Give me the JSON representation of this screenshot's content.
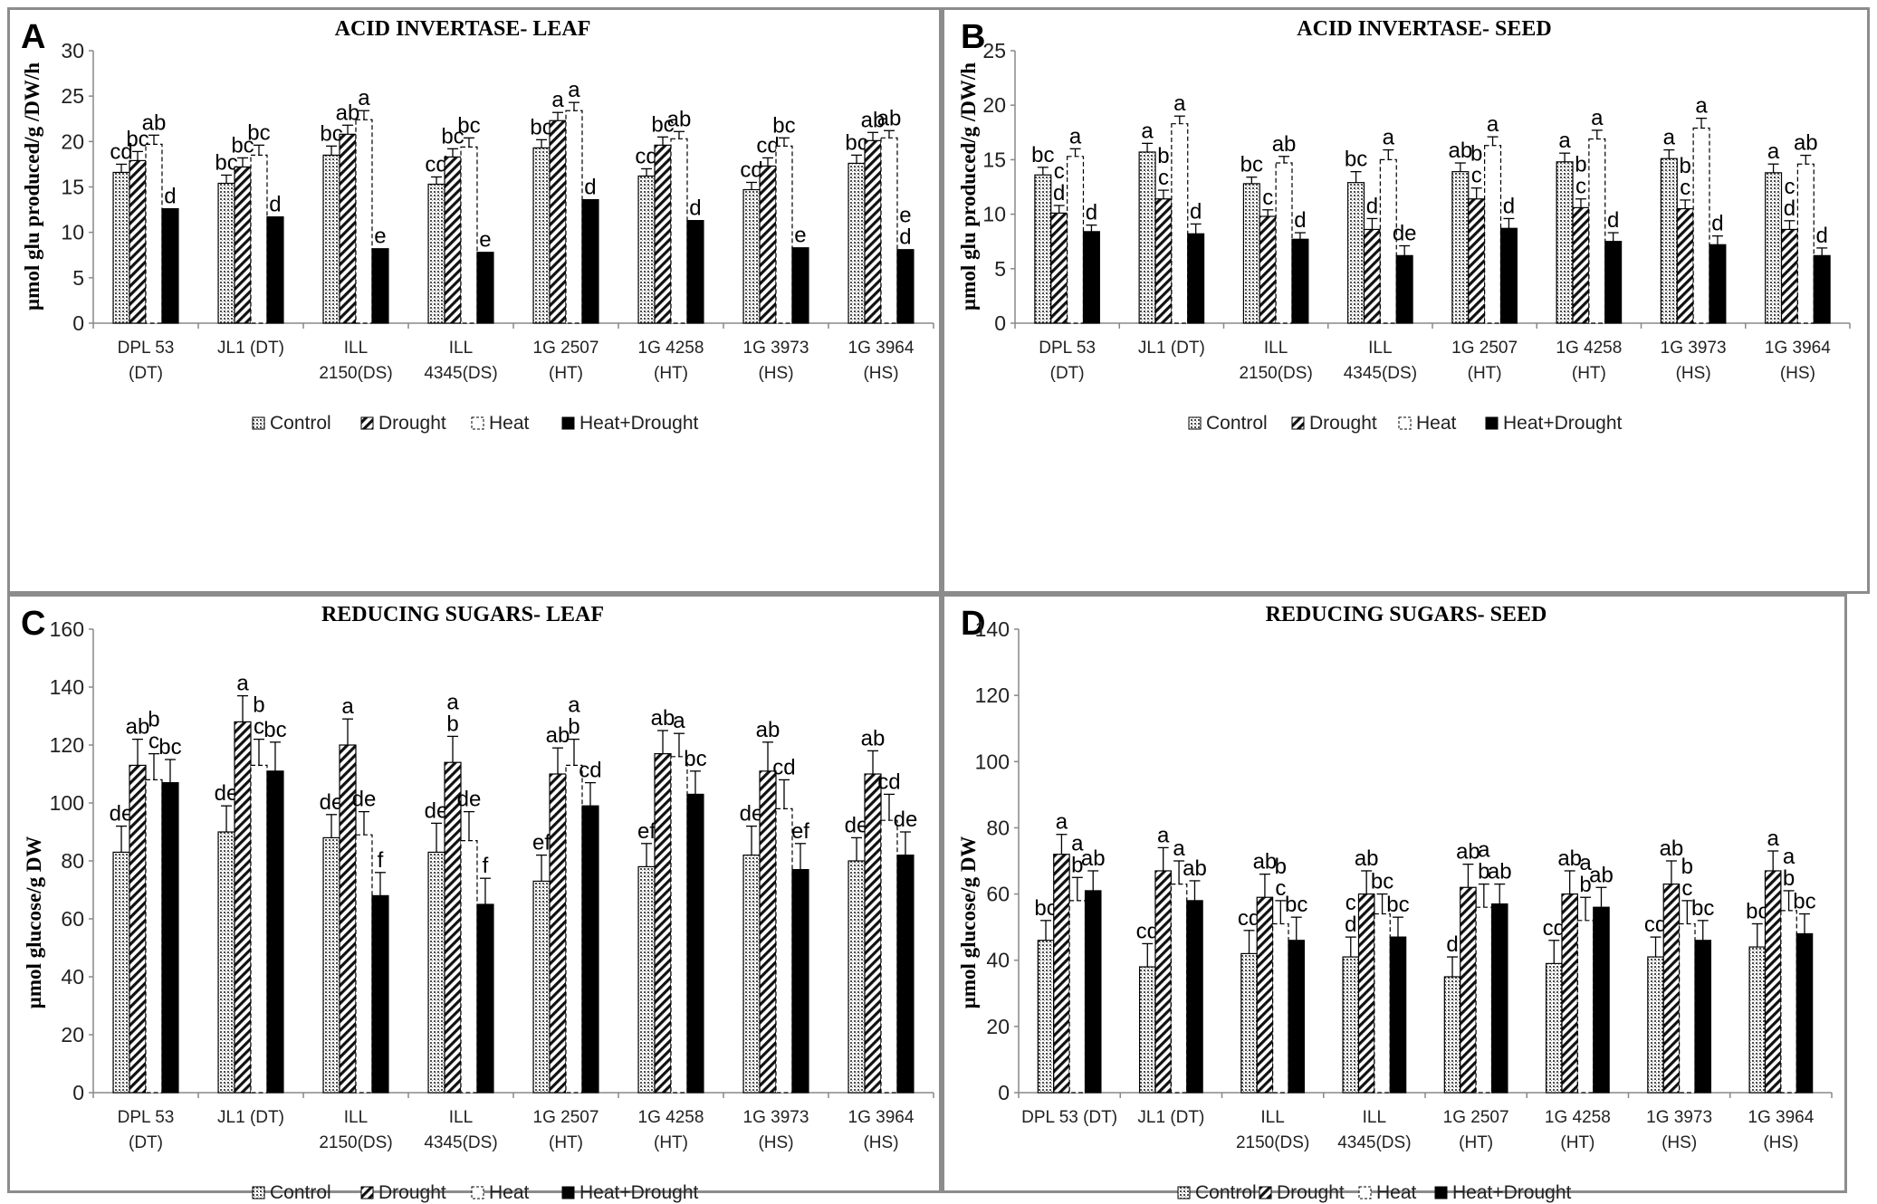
{
  "chart_data": [
    {
      "panel_label": "A",
      "type": "bar",
      "title": "ACID INVERTASE- LEAF",
      "ylabel": "µmol glu produced/g /DW/h",
      "xlabel": "",
      "ylim": [
        0,
        30
      ],
      "yticks": [
        0,
        5,
        10,
        15,
        20,
        25,
        30
      ],
      "categories": [
        [
          "DPL 53",
          "(DT)"
        ],
        [
          "JL1 (DT)"
        ],
        [
          "ILL",
          "2150(DS)"
        ],
        [
          "ILL",
          "4345(DS)"
        ],
        [
          "1G 2507",
          "(HT)"
        ],
        [
          "1G 4258",
          "(HT)"
        ],
        [
          "1G 3973",
          "(HS)"
        ],
        [
          "1G 3964",
          "(HS)"
        ]
      ],
      "legend": [
        "Control",
        "Drought",
        "Heat",
        "Heat+Drought"
      ],
      "series": [
        {
          "name": "Control",
          "values": [
            16.6,
            15.4,
            18.5,
            15.3,
            19.3,
            16.2,
            14.7,
            17.6
          ],
          "errors": [
            0.9,
            0.9,
            1.0,
            0.8,
            0.9,
            0.8,
            0.8,
            0.9
          ],
          "labels": [
            "cd",
            "bc",
            "bc",
            "cd",
            "bc",
            "cd",
            "cd",
            "bc"
          ]
        },
        {
          "name": "Drought",
          "values": [
            17.9,
            17.2,
            20.8,
            18.3,
            22.3,
            19.6,
            17.3,
            20.1
          ],
          "errors": [
            1.0,
            1.0,
            1.0,
            0.9,
            0.9,
            0.9,
            0.9,
            0.9
          ],
          "labels": [
            "bc",
            "bc",
            "ab",
            "bc",
            "a",
            "bc",
            "cd",
            "ab"
          ]
        },
        {
          "name": "Heat",
          "values": [
            19.7,
            18.5,
            22.4,
            19.4,
            23.4,
            20.3,
            19.5,
            20.4
          ],
          "errors": [
            1.0,
            1.1,
            1.0,
            1.0,
            0.9,
            0.8,
            0.9,
            0.8
          ],
          "labels": [
            "ab",
            "bc",
            "a",
            "bc",
            "a",
            "ab",
            "bc",
            "ab"
          ]
        },
        {
          "name": "Heat+Drought",
          "values": [
            12.6,
            11.7,
            8.2,
            7.8,
            13.6,
            11.3,
            8.3,
            8.1
          ],
          "errors": [
            0,
            0,
            0,
            0,
            0,
            0,
            0,
            0
          ],
          "labels": [
            "d",
            "d",
            "e",
            "e",
            "d",
            "d",
            "e",
            "d"
          ],
          "extra_labels": [
            "",
            "",
            "",
            "",
            "",
            "",
            "",
            "e"
          ]
        }
      ]
    },
    {
      "panel_label": "B",
      "type": "bar",
      "title": "ACID INVERTASE- SEED",
      "ylabel": "µmol glu produced/g /DW/h",
      "xlabel": "",
      "ylim": [
        0,
        25
      ],
      "yticks": [
        0,
        5,
        10,
        15,
        20,
        25
      ],
      "categories": [
        [
          "DPL 53",
          "(DT)"
        ],
        [
          "JL1 (DT)"
        ],
        [
          "ILL",
          "2150(DS)"
        ],
        [
          "ILL",
          "4345(DS)"
        ],
        [
          "1G 2507",
          "(HT)"
        ],
        [
          "1G 4258",
          "(HT)"
        ],
        [
          "1G 3973",
          "(HS)"
        ],
        [
          "1G 3964",
          "(HS)"
        ]
      ],
      "legend": [
        "Control",
        "Drought",
        "Heat",
        "Heat+Drought"
      ],
      "series": [
        {
          "name": "Control",
          "values": [
            13.6,
            15.7,
            12.8,
            12.9,
            13.9,
            14.8,
            15.1,
            13.8
          ],
          "errors": [
            0.7,
            0.8,
            0.6,
            1.0,
            0.8,
            0.8,
            0.8,
            0.8
          ],
          "labels": [
            "bc",
            "a",
            "bc",
            "bc",
            "ab",
            "a",
            "a",
            "a"
          ]
        },
        {
          "name": "Drought",
          "values": [
            10.1,
            11.4,
            9.8,
            8.6,
            11.4,
            10.6,
            10.5,
            8.6
          ],
          "errors": [
            0.7,
            0.8,
            0.6,
            1.0,
            1.0,
            0.8,
            0.8,
            0.8
          ],
          "labels": [
            "d",
            "c",
            "c",
            "d",
            "c",
            "c",
            "c",
            "d"
          ],
          "extra_labels": [
            "c",
            "b",
            "",
            "",
            "b",
            "b",
            "b",
            "c"
          ]
        },
        {
          "name": "Heat",
          "values": [
            15.3,
            18.3,
            14.7,
            15.0,
            16.3,
            16.9,
            17.9,
            14.6
          ],
          "errors": [
            0.7,
            0.7,
            0.6,
            0.9,
            0.8,
            0.8,
            0.9,
            0.8
          ],
          "labels": [
            "a",
            "a",
            "ab",
            "a",
            "a",
            "a",
            "a",
            "ab"
          ]
        },
        {
          "name": "Heat+Drought",
          "values": [
            8.4,
            8.2,
            7.7,
            6.2,
            8.7,
            7.5,
            7.2,
            6.2
          ],
          "errors": [
            0.6,
            0.9,
            0.6,
            0.9,
            0.9,
            0.8,
            0.8,
            0.7
          ],
          "labels": [
            "d",
            "d",
            "d",
            "de",
            "d",
            "d",
            "d",
            "d"
          ]
        }
      ]
    },
    {
      "panel_label": "C",
      "type": "bar",
      "title": "REDUCING SUGARS- LEAF",
      "ylabel": "µmol glucose/g DW",
      "xlabel": "",
      "ylim": [
        0,
        160
      ],
      "yticks": [
        0,
        20,
        40,
        60,
        80,
        100,
        120,
        140,
        160
      ],
      "categories": [
        [
          "DPL 53",
          "(DT)"
        ],
        [
          "JL1 (DT)"
        ],
        [
          "ILL",
          "2150(DS)"
        ],
        [
          "ILL",
          "4345(DS)"
        ],
        [
          "1G 2507",
          "(HT)"
        ],
        [
          "1G 4258",
          "(HT)"
        ],
        [
          "1G 3973",
          "(HS)"
        ],
        [
          "1G 3964",
          "(HS)"
        ]
      ],
      "legend": [
        "Control",
        "Drought",
        "Heat",
        "Heat+Drought"
      ],
      "series": [
        {
          "name": "Control",
          "values": [
            83,
            90,
            88,
            83,
            73,
            78,
            82,
            80
          ],
          "errors": [
            9,
            9,
            8,
            10,
            9,
            8,
            10,
            8
          ],
          "labels": [
            "de",
            "de",
            "de",
            "de",
            "ef",
            "ef",
            "de",
            "de"
          ]
        },
        {
          "name": "Drought",
          "values": [
            113,
            128,
            120,
            114,
            110,
            117,
            111,
            110
          ],
          "errors": [
            9,
            9,
            9,
            9,
            9,
            8,
            10,
            8
          ],
          "labels": [
            "ab",
            "a",
            "a",
            "b",
            "ab",
            "ab",
            "ab",
            "ab"
          ],
          "extra_labels": [
            "",
            "",
            "",
            "a",
            "",
            "",
            "",
            ""
          ]
        },
        {
          "name": "Heat",
          "values": [
            108,
            113,
            89,
            87,
            113,
            116,
            98,
            94
          ],
          "errors": [
            9,
            9,
            8,
            10,
            9,
            8,
            10,
            9
          ],
          "labels": [
            "c",
            "c",
            "de",
            "de",
            "b",
            "a",
            "cd",
            "cd"
          ],
          "extra_labels": [
            "b",
            "b",
            "",
            "",
            "a",
            "",
            "",
            ""
          ]
        },
        {
          "name": "Heat+Drought",
          "values": [
            107,
            111,
            68,
            65,
            99,
            103,
            77,
            82
          ],
          "errors": [
            8,
            10,
            8,
            9,
            8,
            8,
            9,
            8
          ],
          "labels": [
            "bc",
            "bc",
            "f",
            "f",
            "cd",
            "bc",
            "ef",
            "de"
          ]
        }
      ]
    },
    {
      "panel_label": "D",
      "type": "bar",
      "title": "REDUCING SUGARS- SEED",
      "ylabel": "µmol glucose/g DW",
      "xlabel": "",
      "ylim": [
        0,
        140
      ],
      "yticks": [
        0,
        20,
        40,
        60,
        80,
        100,
        120,
        140
      ],
      "categories": [
        [
          "DPL 53 (DT)"
        ],
        [
          "JL1 (DT)"
        ],
        [
          "ILL",
          "2150(DS)"
        ],
        [
          "ILL",
          "4345(DS)"
        ],
        [
          "1G 2507",
          "(HT)"
        ],
        [
          "1G 4258",
          "(HT)"
        ],
        [
          "1G 3973",
          "(HS)"
        ],
        [
          "1G 3964",
          "(HS)"
        ]
      ],
      "legend": [
        "Control",
        "Drought",
        "Heat",
        "Heat+Drought"
      ],
      "series": [
        {
          "name": "Control",
          "values": [
            46,
            38,
            42,
            41,
            35,
            39,
            41,
            44
          ],
          "errors": [
            6,
            7,
            7,
            6,
            6,
            7,
            6,
            7
          ],
          "labels": [
            "bc",
            "cd",
            "cd",
            "d",
            "d",
            "cd",
            "cd",
            "bc"
          ],
          "extra_labels": [
            "",
            "",
            "",
            "c",
            "",
            "",
            "",
            ""
          ]
        },
        {
          "name": "Drought",
          "values": [
            72,
            67,
            59,
            60,
            62,
            60,
            63,
            67
          ],
          "errors": [
            6,
            7,
            7,
            7,
            7,
            7,
            7,
            6
          ],
          "labels": [
            "a",
            "a",
            "ab",
            "ab",
            "ab",
            "ab",
            "ab",
            "a"
          ]
        },
        {
          "name": "Heat",
          "values": [
            58,
            63,
            51,
            54,
            56,
            52,
            51,
            55
          ],
          "errors": [
            7,
            7,
            7,
            6,
            7,
            7,
            7,
            6
          ],
          "labels": [
            "b",
            "a",
            "c",
            "bc",
            "b",
            "b",
            "c",
            "b"
          ],
          "extra_labels": [
            "a",
            "",
            "b",
            "",
            "a",
            "a",
            "b",
            "a"
          ]
        },
        {
          "name": "Heat+Drought",
          "values": [
            61,
            58,
            46,
            47,
            57,
            56,
            46,
            48
          ],
          "errors": [
            6,
            6,
            7,
            6,
            6,
            6,
            6,
            6
          ],
          "labels": [
            "ab",
            "ab",
            "bc",
            "bc",
            "ab",
            "ab",
            "bc",
            "bc"
          ]
        }
      ]
    }
  ]
}
